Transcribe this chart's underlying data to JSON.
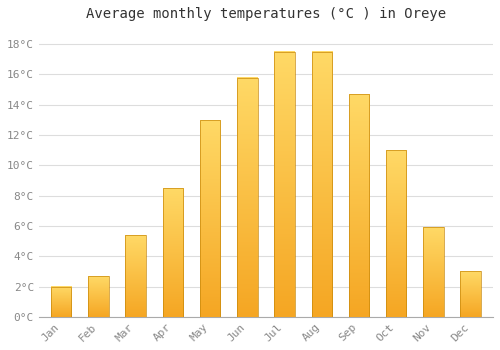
{
  "title": "Average monthly temperatures (°C ) in Oreye",
  "months": [
    "Jan",
    "Feb",
    "Mar",
    "Apr",
    "May",
    "Jun",
    "Jul",
    "Aug",
    "Sep",
    "Oct",
    "Nov",
    "Dec"
  ],
  "values": [
    2.0,
    2.7,
    5.4,
    8.5,
    13.0,
    15.8,
    17.5,
    17.5,
    14.7,
    11.0,
    5.9,
    3.0
  ],
  "bar_color_bottom": "#F5A623",
  "bar_color_top": "#FFD966",
  "bar_edge_color": "#C8880A",
  "ylim": [
    0,
    19
  ],
  "yticks": [
    0,
    2,
    4,
    6,
    8,
    10,
    12,
    14,
    16,
    18
  ],
  "ytick_labels": [
    "0°C",
    "2°C",
    "4°C",
    "6°C",
    "8°C",
    "10°C",
    "12°C",
    "14°C",
    "16°C",
    "18°C"
  ],
  "background_color": "#ffffff",
  "grid_color": "#dddddd",
  "title_fontsize": 10,
  "tick_fontsize": 8,
  "bar_width": 0.55
}
